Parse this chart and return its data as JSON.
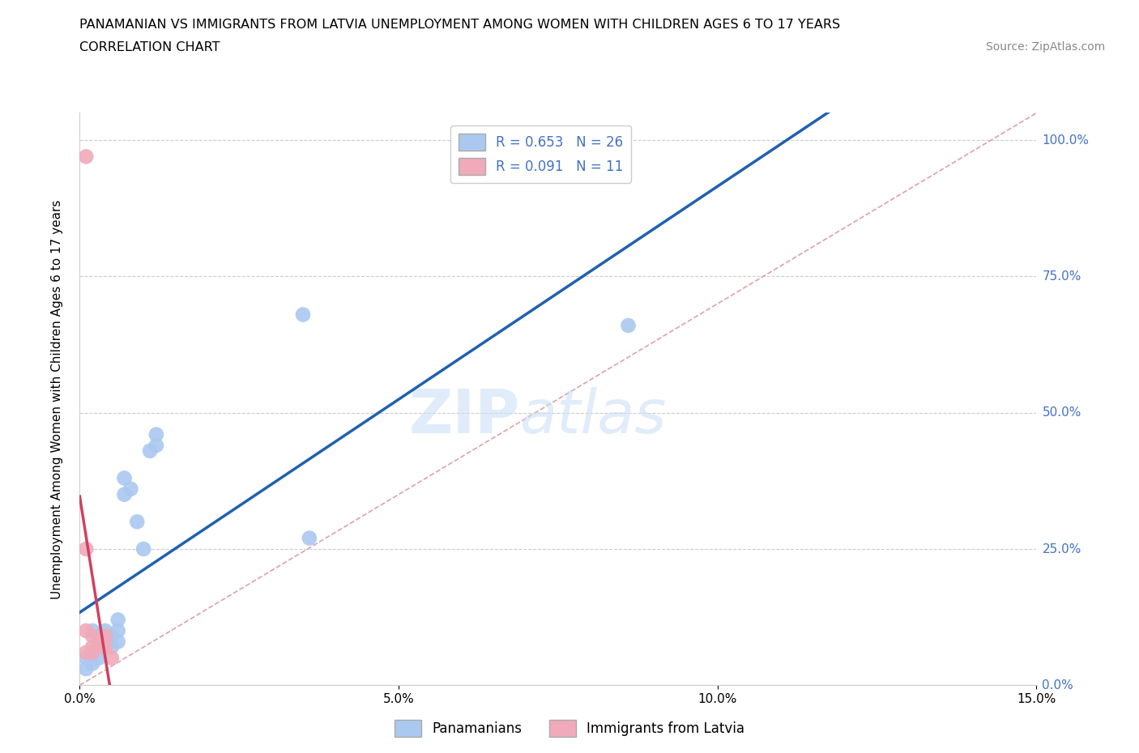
{
  "title_line1": "PANAMANIAN VS IMMIGRANTS FROM LATVIA UNEMPLOYMENT AMONG WOMEN WITH CHILDREN AGES 6 TO 17 YEARS",
  "title_line2": "CORRELATION CHART",
  "source": "Source: ZipAtlas.com",
  "ylabel": "Unemployment Among Women with Children Ages 6 to 17 years",
  "xlim": [
    0.0,
    0.15
  ],
  "ylim": [
    0.0,
    1.05
  ],
  "yticks": [
    0.0,
    0.25,
    0.5,
    0.75,
    1.0
  ],
  "ytick_labels": [
    "0.0%",
    "25.0%",
    "50.0%",
    "75.0%",
    "100.0%"
  ],
  "xticks": [
    0.0,
    0.05,
    0.1,
    0.15
  ],
  "xtick_labels": [
    "0.0%",
    "5.0%",
    "10.0%",
    "15.0%"
  ],
  "blue_R": 0.653,
  "blue_N": 26,
  "pink_R": 0.091,
  "pink_N": 11,
  "blue_color": "#aac8f0",
  "pink_color": "#f0aaba",
  "blue_line_color": "#2060b0",
  "pink_line_color": "#d04060",
  "diagonal_color": "#e0a0a8",
  "legend_label_blue": "Panamanians",
  "legend_label_pink": "Immigrants from Latvia",
  "blue_scatter_x": [
    0.001,
    0.001,
    0.002,
    0.002,
    0.002,
    0.003,
    0.003,
    0.003,
    0.004,
    0.004,
    0.005,
    0.005,
    0.006,
    0.006,
    0.006,
    0.007,
    0.007,
    0.008,
    0.009,
    0.01,
    0.011,
    0.012,
    0.012,
    0.035,
    0.036,
    0.086
  ],
  "blue_scatter_y": [
    0.03,
    0.05,
    0.04,
    0.06,
    0.1,
    0.05,
    0.07,
    0.09,
    0.08,
    0.1,
    0.07,
    0.09,
    0.08,
    0.1,
    0.12,
    0.35,
    0.38,
    0.36,
    0.3,
    0.25,
    0.43,
    0.44,
    0.46,
    0.68,
    0.27,
    0.66
  ],
  "pink_scatter_x": [
    0.001,
    0.001,
    0.001,
    0.001,
    0.002,
    0.002,
    0.002,
    0.003,
    0.004,
    0.004,
    0.005
  ],
  "pink_scatter_y": [
    0.97,
    0.25,
    0.1,
    0.06,
    0.06,
    0.07,
    0.09,
    0.08,
    0.07,
    0.09,
    0.05
  ],
  "watermark_zip": "ZIP",
  "watermark_atlas": "atlas",
  "marker_size": 180
}
